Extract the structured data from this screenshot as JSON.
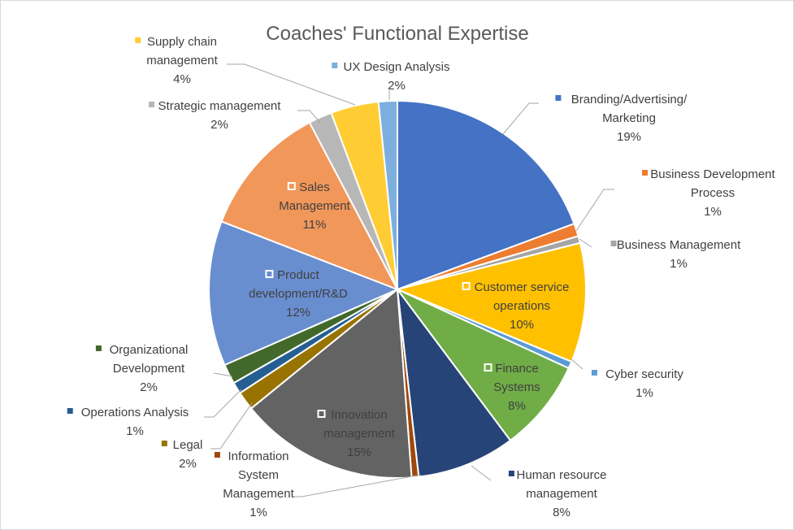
{
  "chart_data": {
    "type": "pie",
    "title": "Coaches' Functional Expertise",
    "slices": [
      {
        "name": "Branding/Advertising/ Marketing",
        "lines": [
          "Branding/Advertising/",
          "Marketing"
        ],
        "pct_label": "19%",
        "value": 19.3,
        "color": "#4472C4",
        "label_inside": false
      },
      {
        "name": "Business Development Process",
        "lines": [
          "Business Development",
          "Process"
        ],
        "pct_label": "1%",
        "value": 1.1,
        "color": "#ED7D31",
        "label_inside": false
      },
      {
        "name": "Business Management",
        "lines": [
          "Business Management"
        ],
        "pct_label": "1%",
        "value": 0.6,
        "color": "#A5A5A5",
        "label_inside": false
      },
      {
        "name": "Customer service operations",
        "lines": [
          "Customer service",
          "operations"
        ],
        "pct_label": "10%",
        "value": 10.2,
        "color": "#FFC000",
        "label_inside": true
      },
      {
        "name": "Cyber security",
        "lines": [
          "Cyber security"
        ],
        "pct_label": "1%",
        "value": 0.6,
        "color": "#5B9BD5",
        "label_inside": false
      },
      {
        "name": "Finance Systems",
        "lines": [
          "Finance",
          "Systems"
        ],
        "pct_label": "8%",
        "value": 7.9,
        "color": "#70AD47",
        "label_inside": true
      },
      {
        "name": "Human resource management",
        "lines": [
          "Human resource",
          "management"
        ],
        "pct_label": "8%",
        "value": 8.4,
        "color": "#264478",
        "label_inside": false
      },
      {
        "name": "Information System Management",
        "lines": [
          "Information",
          "System",
          "Management"
        ],
        "pct_label": "1%",
        "value": 0.6,
        "color": "#9E480E",
        "label_inside": false
      },
      {
        "name": "Innovation management",
        "lines": [
          "Innovation",
          "management"
        ],
        "pct_label": "15%",
        "value": 15.3,
        "color": "#636363",
        "label_inside": true
      },
      {
        "name": "Legal",
        "lines": [
          "Legal"
        ],
        "pct_label": "2%",
        "value": 1.6,
        "color": "#997300",
        "label_inside": false
      },
      {
        "name": "Operations Analysis",
        "lines": [
          "Operations Analysis"
        ],
        "pct_label": "1%",
        "value": 1.0,
        "color": "#255E91",
        "label_inside": false
      },
      {
        "name": "Organizational Development",
        "lines": [
          "Organizational",
          "Development"
        ],
        "pct_label": "2%",
        "value": 1.7,
        "color": "#43682B",
        "label_inside": false
      },
      {
        "name": "Product development/R&D",
        "lines": [
          "Product",
          "development/R&D"
        ],
        "pct_label": "12%",
        "value": 12.4,
        "color": "#698ED0",
        "label_inside": true
      },
      {
        "name": "Sales Management",
        "lines": [
          "Sales",
          "Management"
        ],
        "pct_label": "11%",
        "value": 11.4,
        "color": "#F1975A",
        "label_inside": true
      },
      {
        "name": "Strategic management",
        "lines": [
          "Strategic management"
        ],
        "pct_label": "2%",
        "value": 2.0,
        "color": "#B7B7B7",
        "label_inside": false
      },
      {
        "name": "Supply chain management",
        "lines": [
          "Supply chain",
          "management"
        ],
        "pct_label": "4%",
        "value": 4.1,
        "color": "#FFCD33",
        "label_inside": false
      },
      {
        "name": "UX Design Analysis",
        "lines": [
          "UX Design Analysis"
        ],
        "pct_label": "2%",
        "value": 1.6,
        "color": "#7CAFDD",
        "label_inside": false
      }
    ]
  }
}
